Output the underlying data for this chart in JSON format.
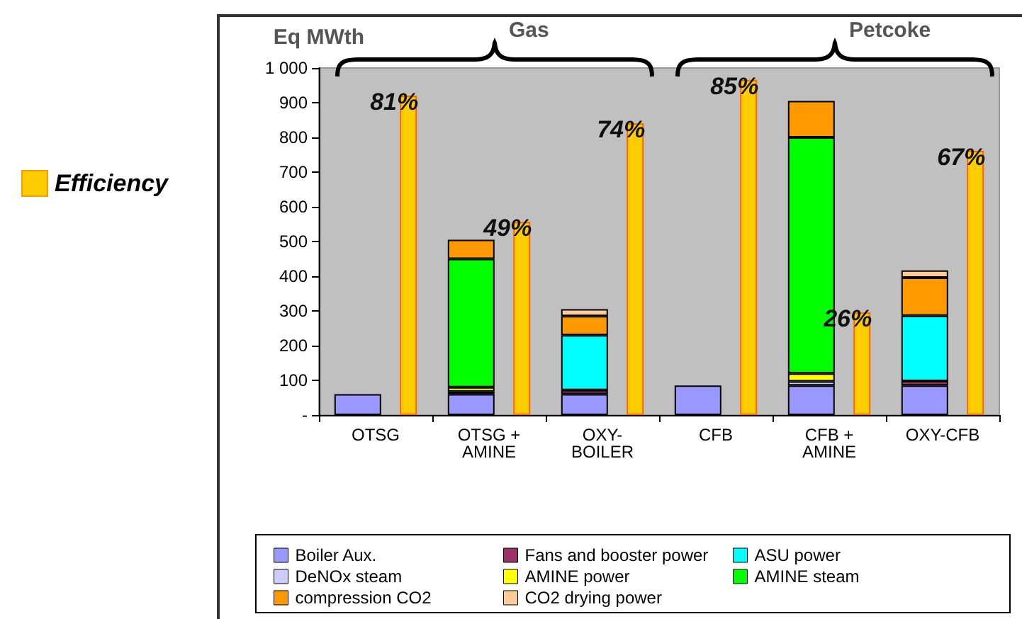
{
  "chart_data": {
    "type": "bar",
    "ylabel": "Eq MWth",
    "categories": [
      "OTSG",
      "OTSG + AMINE",
      "OXY-BOILER",
      "CFB",
      "CFB + AMINE",
      "OXY-CFB"
    ],
    "series": [
      {
        "name": "Boiler Aux.",
        "color": "#9999ff",
        "values": [
          60,
          60,
          60,
          85,
          85,
          85
        ]
      },
      {
        "name": "Fans and booster power",
        "color": "#993366",
        "values": [
          null,
          null,
          12,
          null,
          null,
          13
        ]
      },
      {
        "name": "ASU power",
        "color": "#00ffff",
        "values": [
          null,
          null,
          158,
          null,
          null,
          188
        ]
      },
      {
        "name": "DeNOx steam",
        "color": "#ccccff",
        "values": [
          null,
          8,
          null,
          null,
          12,
          null
        ]
      },
      {
        "name": "AMINE power",
        "color": "#ffff00",
        "values": [
          null,
          12,
          null,
          null,
          23,
          null
        ]
      },
      {
        "name": "AMINE steam",
        "color": "#00ff00",
        "values": [
          null,
          370,
          null,
          null,
          680,
          null
        ]
      },
      {
        "name": "compression CO2",
        "color": "#ff9900",
        "values": [
          null,
          55,
          55,
          null,
          105,
          110
        ]
      },
      {
        "name": "CO2 drying power",
        "color": "#ffcc99",
        "values": [
          null,
          null,
          20,
          null,
          null,
          21
        ]
      },
      {
        "name": "Efficiency",
        "color": "#ffcc00",
        "axis": "y2",
        "values": [
          81,
          49,
          74,
          85,
          26,
          67
        ],
        "value_labels": [
          "81%",
          "49%",
          "74%",
          "85%",
          "26%",
          "67%"
        ]
      }
    ],
    "stacked": true,
    "annotations": [
      "Gas",
      "Petcoke"
    ],
    "ylim": [
      0,
      1000
    ],
    "yticks": [
      {
        "value": 0,
        "label": "-"
      },
      100,
      200,
      300,
      400,
      500,
      600,
      700,
      800,
      900,
      {
        "value": 1000,
        "label": "1 000"
      }
    ],
    "y2lim": [
      0,
      88
    ],
    "grid": false,
    "legend": "bottom"
  }
}
